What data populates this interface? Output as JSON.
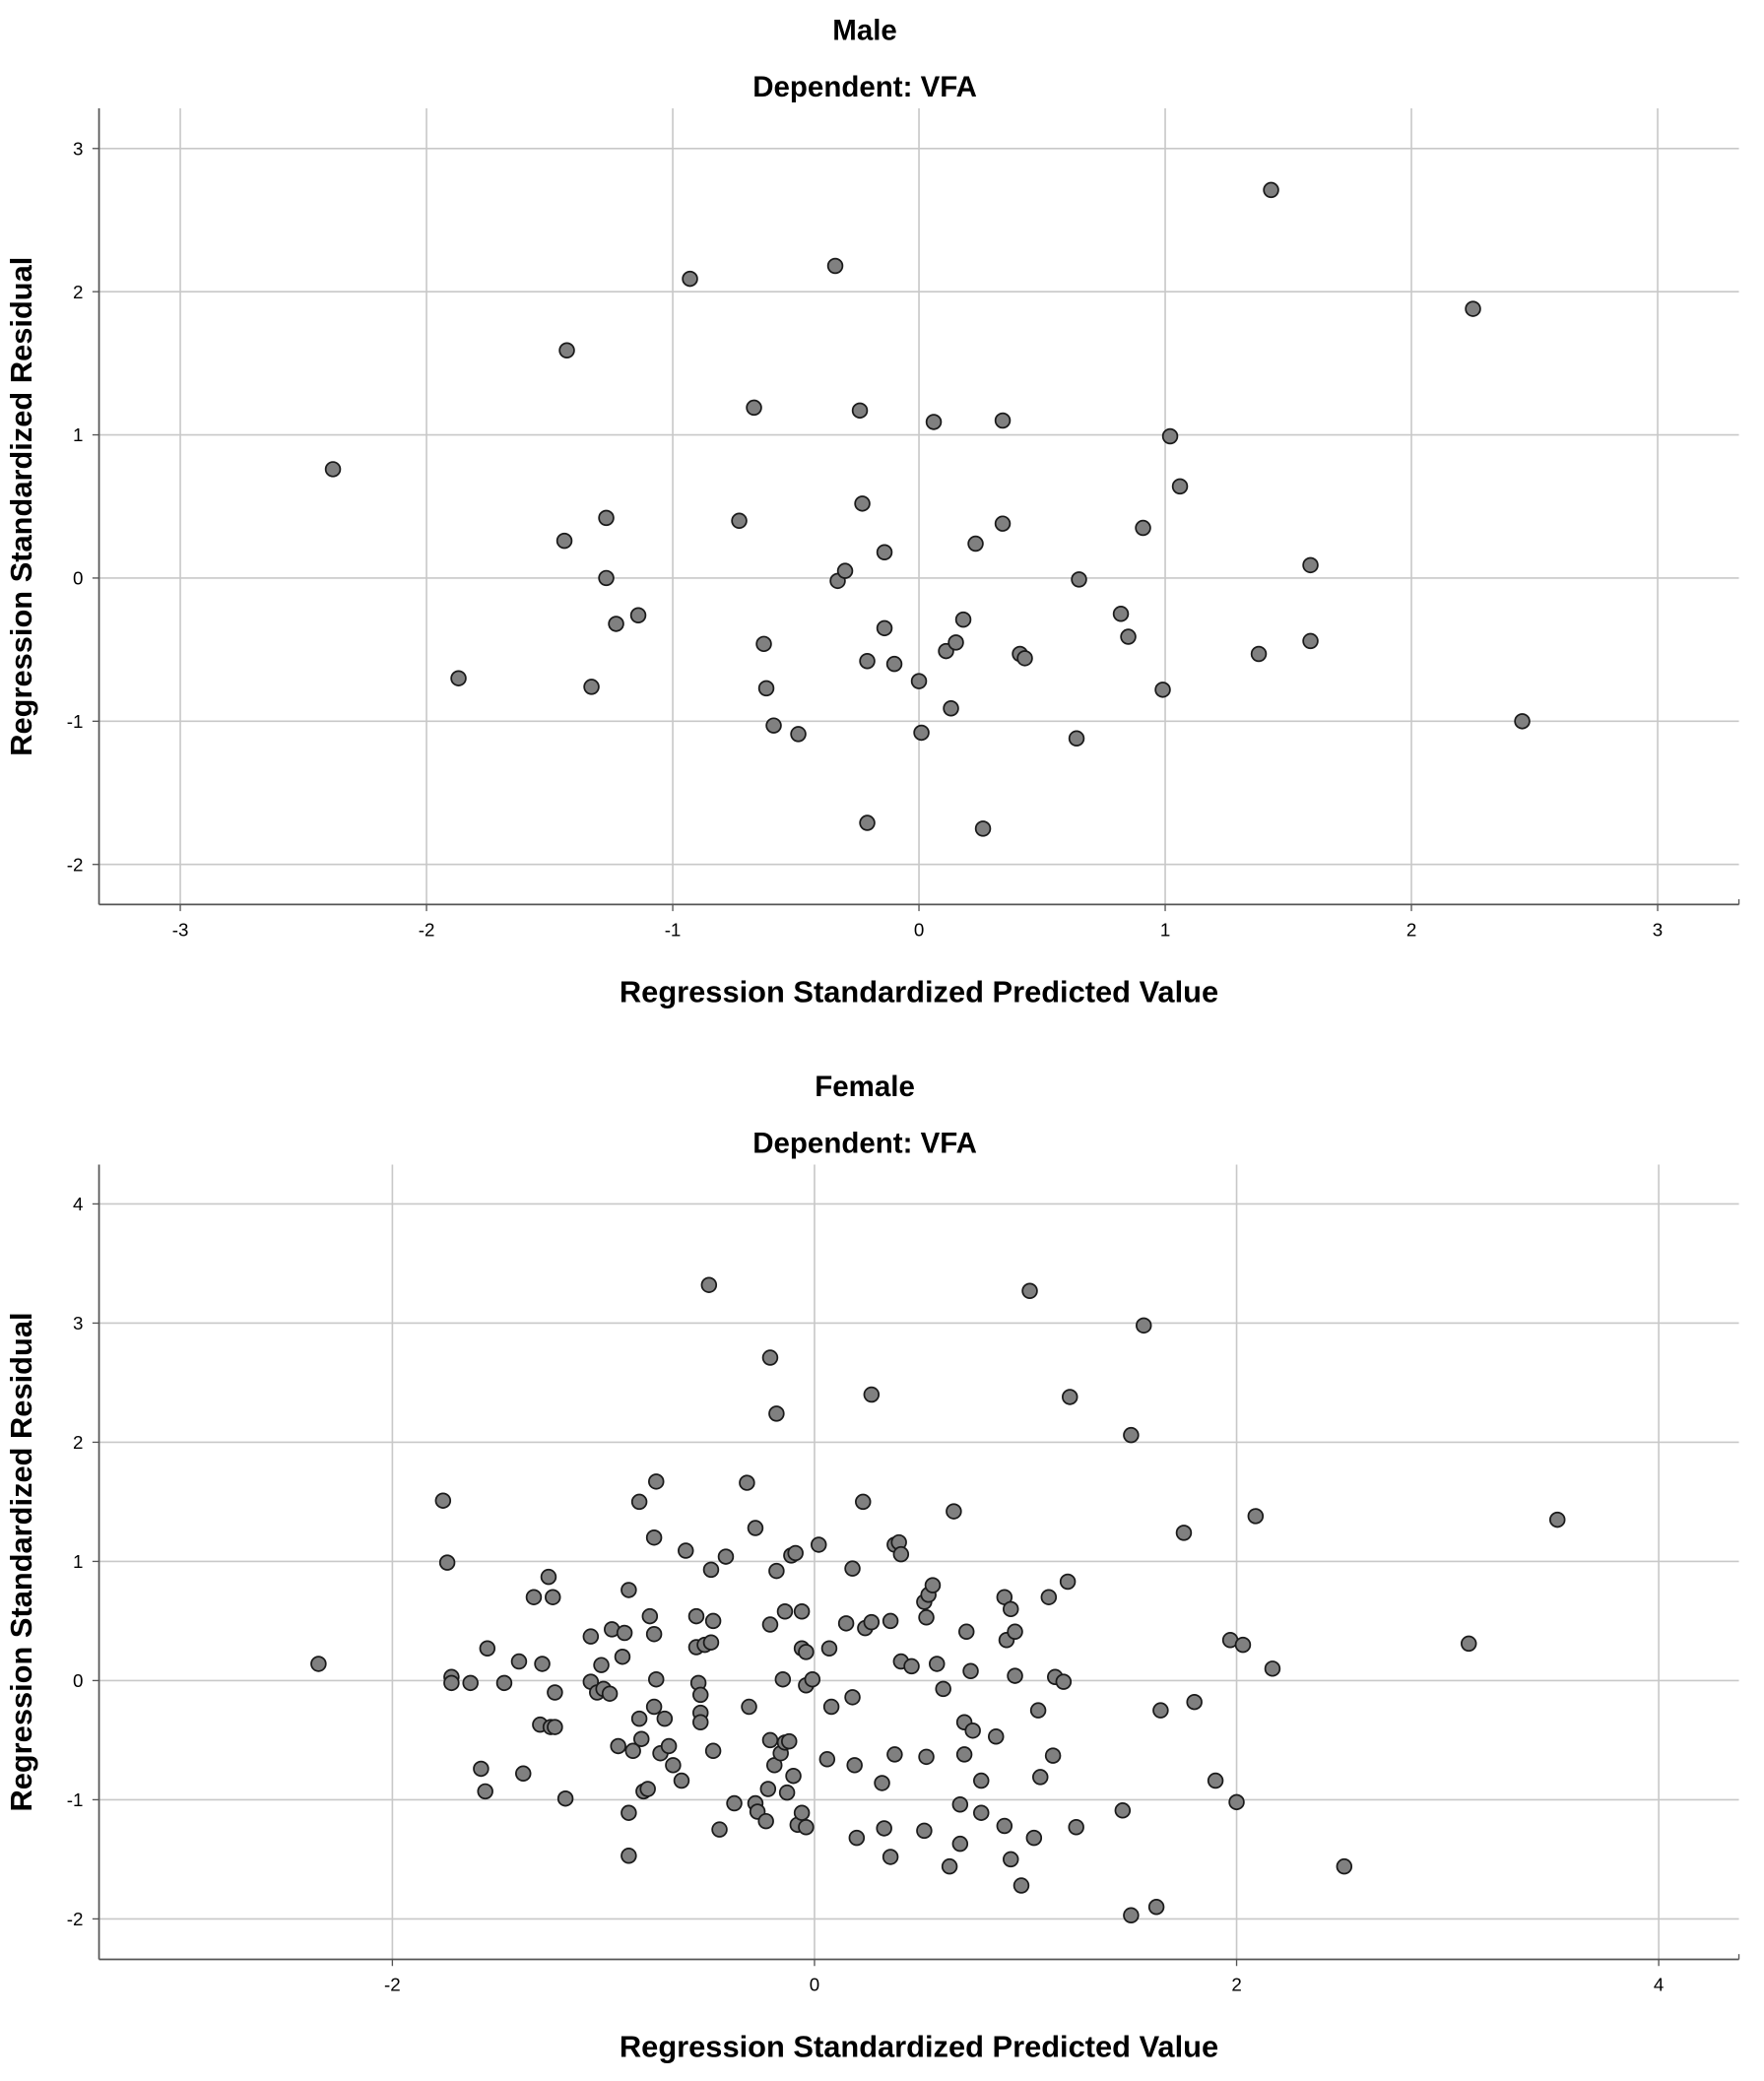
{
  "chart_data": [
    {
      "type": "scatter",
      "title": "Male",
      "subtitle": "Dependent: VFA",
      "x_label": "Regression Standardized Predicted Value",
      "y_label": "Regression Standardized Residual",
      "color": "#808080",
      "grid": true,
      "xlim": [
        -3.33,
        3.33
      ],
      "ylim": [
        -2.28,
        3.28
      ],
      "xticks": [
        -3,
        -2,
        -1,
        0,
        1,
        2,
        3
      ],
      "yticks": [
        -2,
        -1,
        0,
        1,
        2,
        3
      ],
      "x": [
        -2.38,
        -1.87,
        -1.43,
        -1.44,
        -1.27,
        -1.27,
        -1.33,
        -1.23,
        -1.14,
        -0.93,
        -0.73,
        -0.67,
        -0.63,
        -0.62,
        -0.59,
        -0.49,
        -0.34,
        -0.33,
        -0.3,
        -0.24,
        -0.23,
        -0.21,
        -0.21,
        -0.14,
        -0.14,
        -0.1,
        0.0,
        0.01,
        0.06,
        0.11,
        0.13,
        0.15,
        0.18,
        0.23,
        0.26,
        0.34,
        0.34,
        0.41,
        0.43,
        0.64,
        0.65,
        0.82,
        0.85,
        0.91,
        0.99,
        1.02,
        1.06,
        1.38,
        1.43,
        1.59,
        1.59,
        2.25,
        2.45
      ],
      "values": [
        0.76,
        -0.7,
        1.59,
        0.26,
        0.42,
        0.0,
        -0.76,
        -0.32,
        -0.26,
        2.09,
        0.4,
        1.19,
        -0.46,
        -0.77,
        -1.03,
        -1.09,
        2.18,
        -0.02,
        0.05,
        1.17,
        0.52,
        -1.71,
        -0.58,
        0.18,
        -0.35,
        -0.6,
        -0.72,
        -1.08,
        1.09,
        -0.51,
        -0.91,
        -0.45,
        -0.29,
        0.24,
        -1.75,
        0.38,
        1.1,
        -0.53,
        -0.56,
        -1.12,
        -0.01,
        -0.25,
        -0.41,
        0.35,
        -0.78,
        0.99,
        0.64,
        -0.53,
        2.71,
        0.09,
        -0.44,
        1.88,
        -1.0
      ]
    },
    {
      "type": "scatter",
      "title": "Female",
      "subtitle": "Dependent: VFA",
      "x_label": "Regression Standardized Predicted Value",
      "y_label": "Regression Standardized Residual",
      "color": "#808080",
      "grid": true,
      "xlim": [
        -3.39,
        4.38
      ],
      "ylim": [
        -2.34,
        4.33
      ],
      "xticks": [
        -2,
        0,
        2,
        4
      ],
      "yticks": [
        -2,
        -1,
        0,
        1,
        2,
        3,
        4
      ],
      "x": [
        -2.35,
        -1.76,
        -1.74,
        -1.72,
        -1.72,
        -1.63,
        -1.58,
        -1.56,
        -1.55,
        -1.47,
        -1.4,
        -1.38,
        -1.33,
        -1.3,
        -1.29,
        -1.26,
        -1.25,
        -1.24,
        -1.23,
        -1.23,
        -1.18,
        -1.06,
        -1.06,
        -1.03,
        -1.01,
        -1.0,
        -0.97,
        -0.96,
        -0.93,
        -0.91,
        -0.9,
        -0.88,
        -0.88,
        -0.88,
        -0.86,
        -0.83,
        -0.82,
        -0.83,
        -0.81,
        -0.79,
        -0.78,
        -0.76,
        -0.76,
        -0.75,
        -0.75,
        -0.76,
        -0.73,
        -0.71,
        -0.69,
        -0.67,
        -0.63,
        -0.61,
        -0.56,
        -0.56,
        -0.55,
        -0.54,
        -0.54,
        -0.54,
        -0.52,
        -0.5,
        -0.49,
        -0.48,
        -0.49,
        -0.48,
        -0.45,
        -0.42,
        -0.38,
        -0.32,
        -0.31,
        -0.28,
        -0.28,
        -0.27,
        -0.23,
        -0.22,
        -0.21,
        -0.21,
        -0.21,
        -0.19,
        -0.18,
        -0.18,
        -0.16,
        -0.15,
        -0.14,
        -0.14,
        -0.13,
        -0.12,
        -0.11,
        -0.1,
        -0.09,
        -0.08,
        -0.06,
        -0.06,
        -0.06,
        -0.04,
        -0.04,
        -0.04,
        -0.01,
        0.02,
        0.06,
        0.07,
        0.08,
        0.15,
        0.18,
        0.18,
        0.19,
        0.2,
        0.24,
        0.23,
        0.27,
        0.27,
        0.32,
        0.33,
        0.36,
        0.36,
        0.38,
        0.38,
        0.4,
        0.41,
        0.41,
        0.46,
        0.52,
        0.53,
        0.53,
        0.52,
        0.54,
        0.56,
        0.58,
        0.61,
        0.64,
        0.66,
        0.69,
        0.69,
        0.71,
        0.71,
        0.72,
        0.74,
        0.75,
        0.79,
        0.79,
        0.86,
        0.9,
        0.9,
        0.91,
        0.93,
        0.93,
        0.95,
        0.95,
        0.98,
        1.02,
        1.04,
        1.06,
        1.07,
        1.11,
        1.13,
        1.14,
        1.18,
        1.2,
        1.21,
        1.24,
        1.46,
        1.5,
        1.5,
        1.56,
        1.62,
        1.64,
        1.75,
        1.8,
        1.9,
        1.97,
        2.0,
        2.03,
        2.09,
        2.17,
        2.51,
        3.1,
        3.52
      ],
      "values": [
        0.14,
        1.51,
        0.99,
        0.03,
        -0.02,
        -0.02,
        -0.74,
        -0.93,
        0.27,
        -0.02,
        0.16,
        -0.78,
        0.7,
        -0.37,
        0.14,
        0.87,
        -0.39,
        0.7,
        -0.1,
        -0.39,
        -0.99,
        0.37,
        -0.01,
        -0.1,
        0.13,
        -0.07,
        -0.11,
        0.43,
        -0.55,
        0.2,
        0.4,
        0.76,
        -1.11,
        -1.47,
        -0.59,
        -0.32,
        -0.49,
        1.5,
        -0.93,
        -0.91,
        0.54,
        -0.22,
        0.39,
        0.01,
        1.67,
        1.2,
        -0.61,
        -0.32,
        -0.55,
        -0.71,
        -0.84,
        1.09,
        0.54,
        0.28,
        -0.02,
        -0.12,
        -0.27,
        -0.35,
        0.3,
        3.32,
        0.93,
        0.5,
        0.32,
        -0.59,
        -1.25,
        1.04,
        -1.03,
        1.66,
        -0.22,
        1.28,
        -1.03,
        -1.1,
        -1.18,
        -0.91,
        -0.5,
        0.47,
        2.71,
        -0.71,
        2.24,
        0.92,
        -0.61,
        0.01,
        0.58,
        -0.52,
        -0.94,
        -0.51,
        1.05,
        -0.8,
        1.07,
        -1.21,
        0.58,
        0.27,
        -1.11,
        -0.04,
        -1.23,
        0.24,
        0.01,
        1.14,
        -0.66,
        0.27,
        -0.22,
        0.48,
        0.94,
        -0.14,
        -0.71,
        -1.32,
        0.44,
        1.5,
        0.49,
        2.4,
        -0.86,
        -1.24,
        0.5,
        -1.48,
        -0.62,
        1.14,
        1.16,
        1.06,
        0.16,
        0.12,
        -1.26,
        -0.64,
        0.53,
        0.66,
        0.72,
        0.8,
        0.14,
        -0.07,
        -1.56,
        1.42,
        -1.04,
        -1.37,
        -0.35,
        -0.62,
        0.41,
        0.08,
        -0.42,
        -0.84,
        -1.11,
        -0.47,
        -1.22,
        0.7,
        0.34,
        0.6,
        -1.5,
        0.04,
        0.41,
        -1.72,
        3.27,
        -1.32,
        -0.25,
        -0.81,
        0.7,
        -0.63,
        0.03,
        -0.01,
        0.83,
        2.38,
        -1.23,
        -1.09,
        -1.97,
        2.06,
        2.98,
        -1.9,
        -0.25,
        1.24,
        -0.18,
        -0.84,
        0.34,
        -1.02,
        0.3,
        1.38,
        0.1,
        -1.56,
        0.31,
        1.35
      ]
    }
  ]
}
